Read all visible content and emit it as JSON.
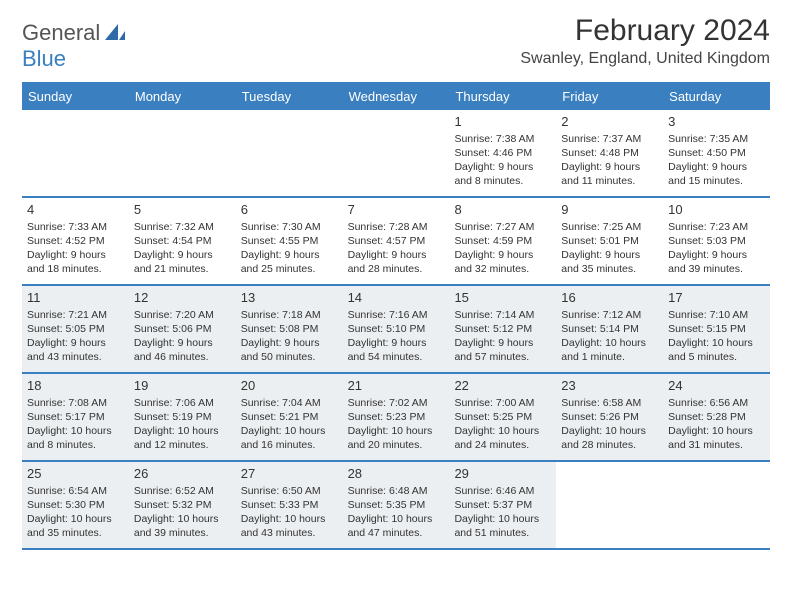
{
  "logo": {
    "word1": "General",
    "word2": "Blue"
  },
  "title": "February 2024",
  "location": "Swanley, England, United Kingdom",
  "colors": {
    "accent": "#3a7fbf",
    "shaded_bg": "#eceff1",
    "text": "#333333",
    "bg": "#ffffff"
  },
  "weekdays": [
    "Sunday",
    "Monday",
    "Tuesday",
    "Wednesday",
    "Thursday",
    "Friday",
    "Saturday"
  ],
  "weeks": [
    [
      {
        "empty": true
      },
      {
        "empty": true
      },
      {
        "empty": true
      },
      {
        "empty": true
      },
      {
        "num": "1",
        "sunrise": "Sunrise: 7:38 AM",
        "sunset": "Sunset: 4:46 PM",
        "day1": "Daylight: 9 hours",
        "day2": "and 8 minutes."
      },
      {
        "num": "2",
        "sunrise": "Sunrise: 7:37 AM",
        "sunset": "Sunset: 4:48 PM",
        "day1": "Daylight: 9 hours",
        "day2": "and 11 minutes."
      },
      {
        "num": "3",
        "sunrise": "Sunrise: 7:35 AM",
        "sunset": "Sunset: 4:50 PM",
        "day1": "Daylight: 9 hours",
        "day2": "and 15 minutes."
      }
    ],
    [
      {
        "num": "4",
        "sunrise": "Sunrise: 7:33 AM",
        "sunset": "Sunset: 4:52 PM",
        "day1": "Daylight: 9 hours",
        "day2": "and 18 minutes."
      },
      {
        "num": "5",
        "sunrise": "Sunrise: 7:32 AM",
        "sunset": "Sunset: 4:54 PM",
        "day1": "Daylight: 9 hours",
        "day2": "and 21 minutes."
      },
      {
        "num": "6",
        "sunrise": "Sunrise: 7:30 AM",
        "sunset": "Sunset: 4:55 PM",
        "day1": "Daylight: 9 hours",
        "day2": "and 25 minutes."
      },
      {
        "num": "7",
        "sunrise": "Sunrise: 7:28 AM",
        "sunset": "Sunset: 4:57 PM",
        "day1": "Daylight: 9 hours",
        "day2": "and 28 minutes."
      },
      {
        "num": "8",
        "sunrise": "Sunrise: 7:27 AM",
        "sunset": "Sunset: 4:59 PM",
        "day1": "Daylight: 9 hours",
        "day2": "and 32 minutes."
      },
      {
        "num": "9",
        "sunrise": "Sunrise: 7:25 AM",
        "sunset": "Sunset: 5:01 PM",
        "day1": "Daylight: 9 hours",
        "day2": "and 35 minutes."
      },
      {
        "num": "10",
        "sunrise": "Sunrise: 7:23 AM",
        "sunset": "Sunset: 5:03 PM",
        "day1": "Daylight: 9 hours",
        "day2": "and 39 minutes."
      }
    ],
    [
      {
        "num": "11",
        "sunrise": "Sunrise: 7:21 AM",
        "sunset": "Sunset: 5:05 PM",
        "day1": "Daylight: 9 hours",
        "day2": "and 43 minutes.",
        "shaded": true
      },
      {
        "num": "12",
        "sunrise": "Sunrise: 7:20 AM",
        "sunset": "Sunset: 5:06 PM",
        "day1": "Daylight: 9 hours",
        "day2": "and 46 minutes.",
        "shaded": true
      },
      {
        "num": "13",
        "sunrise": "Sunrise: 7:18 AM",
        "sunset": "Sunset: 5:08 PM",
        "day1": "Daylight: 9 hours",
        "day2": "and 50 minutes.",
        "shaded": true
      },
      {
        "num": "14",
        "sunrise": "Sunrise: 7:16 AM",
        "sunset": "Sunset: 5:10 PM",
        "day1": "Daylight: 9 hours",
        "day2": "and 54 minutes.",
        "shaded": true
      },
      {
        "num": "15",
        "sunrise": "Sunrise: 7:14 AM",
        "sunset": "Sunset: 5:12 PM",
        "day1": "Daylight: 9 hours",
        "day2": "and 57 minutes.",
        "shaded": true
      },
      {
        "num": "16",
        "sunrise": "Sunrise: 7:12 AM",
        "sunset": "Sunset: 5:14 PM",
        "day1": "Daylight: 10 hours",
        "day2": "and 1 minute.",
        "shaded": true
      },
      {
        "num": "17",
        "sunrise": "Sunrise: 7:10 AM",
        "sunset": "Sunset: 5:15 PM",
        "day1": "Daylight: 10 hours",
        "day2": "and 5 minutes.",
        "shaded": true
      }
    ],
    [
      {
        "num": "18",
        "sunrise": "Sunrise: 7:08 AM",
        "sunset": "Sunset: 5:17 PM",
        "day1": "Daylight: 10 hours",
        "day2": "and 8 minutes.",
        "shaded": true
      },
      {
        "num": "19",
        "sunrise": "Sunrise: 7:06 AM",
        "sunset": "Sunset: 5:19 PM",
        "day1": "Daylight: 10 hours",
        "day2": "and 12 minutes.",
        "shaded": true
      },
      {
        "num": "20",
        "sunrise": "Sunrise: 7:04 AM",
        "sunset": "Sunset: 5:21 PM",
        "day1": "Daylight: 10 hours",
        "day2": "and 16 minutes.",
        "shaded": true
      },
      {
        "num": "21",
        "sunrise": "Sunrise: 7:02 AM",
        "sunset": "Sunset: 5:23 PM",
        "day1": "Daylight: 10 hours",
        "day2": "and 20 minutes.",
        "shaded": true
      },
      {
        "num": "22",
        "sunrise": "Sunrise: 7:00 AM",
        "sunset": "Sunset: 5:25 PM",
        "day1": "Daylight: 10 hours",
        "day2": "and 24 minutes.",
        "shaded": true
      },
      {
        "num": "23",
        "sunrise": "Sunrise: 6:58 AM",
        "sunset": "Sunset: 5:26 PM",
        "day1": "Daylight: 10 hours",
        "day2": "and 28 minutes.",
        "shaded": true
      },
      {
        "num": "24",
        "sunrise": "Sunrise: 6:56 AM",
        "sunset": "Sunset: 5:28 PM",
        "day1": "Daylight: 10 hours",
        "day2": "and 31 minutes.",
        "shaded": true
      }
    ],
    [
      {
        "num": "25",
        "sunrise": "Sunrise: 6:54 AM",
        "sunset": "Sunset: 5:30 PM",
        "day1": "Daylight: 10 hours",
        "day2": "and 35 minutes.",
        "shaded": true
      },
      {
        "num": "26",
        "sunrise": "Sunrise: 6:52 AM",
        "sunset": "Sunset: 5:32 PM",
        "day1": "Daylight: 10 hours",
        "day2": "and 39 minutes.",
        "shaded": true
      },
      {
        "num": "27",
        "sunrise": "Sunrise: 6:50 AM",
        "sunset": "Sunset: 5:33 PM",
        "day1": "Daylight: 10 hours",
        "day2": "and 43 minutes.",
        "shaded": true
      },
      {
        "num": "28",
        "sunrise": "Sunrise: 6:48 AM",
        "sunset": "Sunset: 5:35 PM",
        "day1": "Daylight: 10 hours",
        "day2": "and 47 minutes.",
        "shaded": true
      },
      {
        "num": "29",
        "sunrise": "Sunrise: 6:46 AM",
        "sunset": "Sunset: 5:37 PM",
        "day1": "Daylight: 10 hours",
        "day2": "and 51 minutes.",
        "shaded": true
      },
      {
        "empty": true
      },
      {
        "empty": true
      }
    ]
  ]
}
